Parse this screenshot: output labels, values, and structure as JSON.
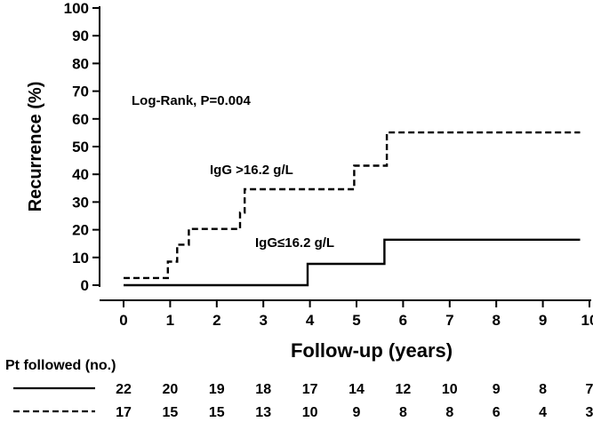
{
  "chart_data": {
    "type": "line",
    "title": "",
    "xlabel": "Follow-up (years)",
    "ylabel": "Recurrence (%)",
    "xlim": [
      0,
      10
    ],
    "ylim": [
      0,
      100
    ],
    "x_ticks": [
      "0",
      "1",
      "2",
      "3",
      "4",
      "5",
      "6",
      "7",
      "8",
      "9",
      "10"
    ],
    "y_ticks": [
      "0",
      "10",
      "20",
      "30",
      "40",
      "50",
      "60",
      "70",
      "80",
      "90",
      "100"
    ],
    "grid": false,
    "annotation": "Log-Rank, P=0.004",
    "series": [
      {
        "name": "IgG >16.2 g/L",
        "style": "dashed",
        "color": "#000000",
        "points": [
          [
            0,
            2.6
          ],
          [
            0.95,
            2.6
          ],
          [
            0.95,
            8.5
          ],
          [
            1.15,
            8.5
          ],
          [
            1.15,
            14.6
          ],
          [
            1.4,
            14.6
          ],
          [
            1.4,
            20.3
          ],
          [
            2.5,
            20.3
          ],
          [
            2.5,
            26.2
          ],
          [
            2.6,
            26.2
          ],
          [
            2.6,
            34.6
          ],
          [
            4.95,
            34.6
          ],
          [
            4.95,
            43.1
          ],
          [
            5.65,
            43.1
          ],
          [
            5.65,
            55.1
          ],
          [
            9.8,
            55.1
          ]
        ]
      },
      {
        "name": "IgG≤16.2 g/L",
        "style": "solid",
        "color": "#000000",
        "points": [
          [
            0,
            0
          ],
          [
            3.95,
            0
          ],
          [
            3.95,
            7.7
          ],
          [
            5.6,
            7.7
          ],
          [
            5.6,
            16.4
          ],
          [
            9.8,
            16.4
          ]
        ]
      }
    ]
  },
  "risk_table": {
    "title": "Pt followed (no.)",
    "rows": [
      {
        "style": "solid",
        "values": [
          "22",
          "20",
          "19",
          "18",
          "17",
          "14",
          "12",
          "10",
          "9",
          "8",
          "7"
        ]
      },
      {
        "style": "dashed",
        "values": [
          "17",
          "15",
          "15",
          "13",
          "10",
          "9",
          "8",
          "8",
          "6",
          "4",
          "3"
        ]
      }
    ]
  }
}
